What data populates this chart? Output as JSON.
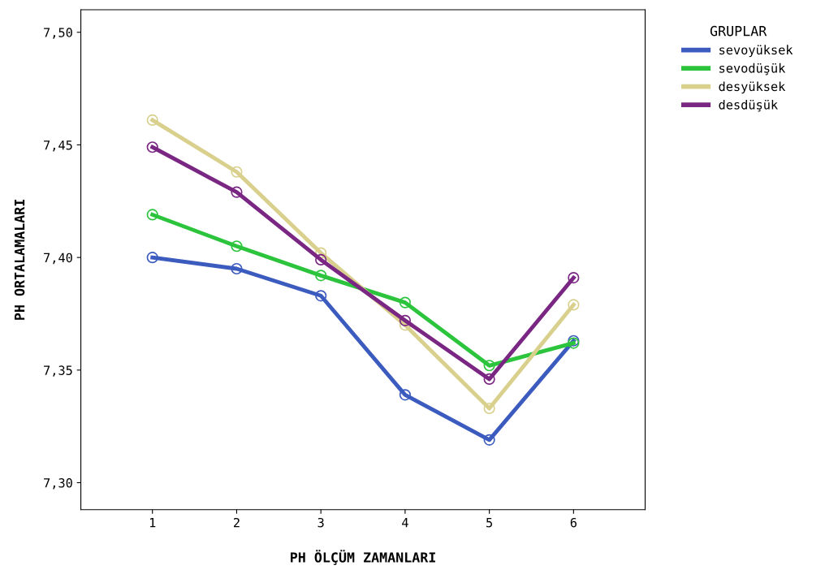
{
  "chart_data": {
    "type": "line",
    "xlabel": "PH ÖLÇÜM ZAMANLARI",
    "ylabel": "PH ORTALAMALARI",
    "legend_title": "GRUPLAR",
    "categories": [
      "1",
      "2",
      "3",
      "4",
      "5",
      "6"
    ],
    "series": [
      {
        "name": "sevoyüksek",
        "color": "#3c5bbf",
        "values": [
          7.4,
          7.395,
          7.383,
          7.339,
          7.319,
          7.363
        ]
      },
      {
        "name": "sevodüşük",
        "color": "#2cc43c",
        "values": [
          7.419,
          7.405,
          7.392,
          7.38,
          7.352,
          7.362
        ]
      },
      {
        "name": "desyüksek",
        "color": "#d8d08c",
        "values": [
          7.461,
          7.438,
          7.402,
          7.37,
          7.333,
          7.379
        ]
      },
      {
        "name": "desdüşük",
        "color": "#7a2683",
        "values": [
          7.449,
          7.429,
          7.399,
          7.372,
          7.346,
          7.391
        ]
      }
    ],
    "ylim": [
      7.288,
      7.51
    ],
    "yticks": [
      {
        "value": 7.3,
        "label": "7,30"
      },
      {
        "value": 7.35,
        "label": "7,35"
      },
      {
        "value": 7.4,
        "label": "7,40"
      },
      {
        "value": 7.45,
        "label": "7,45"
      },
      {
        "value": 7.5,
        "label": "7,50"
      }
    ],
    "marker": "circle",
    "line_style": "solid",
    "legend": "right",
    "grid": false
  }
}
